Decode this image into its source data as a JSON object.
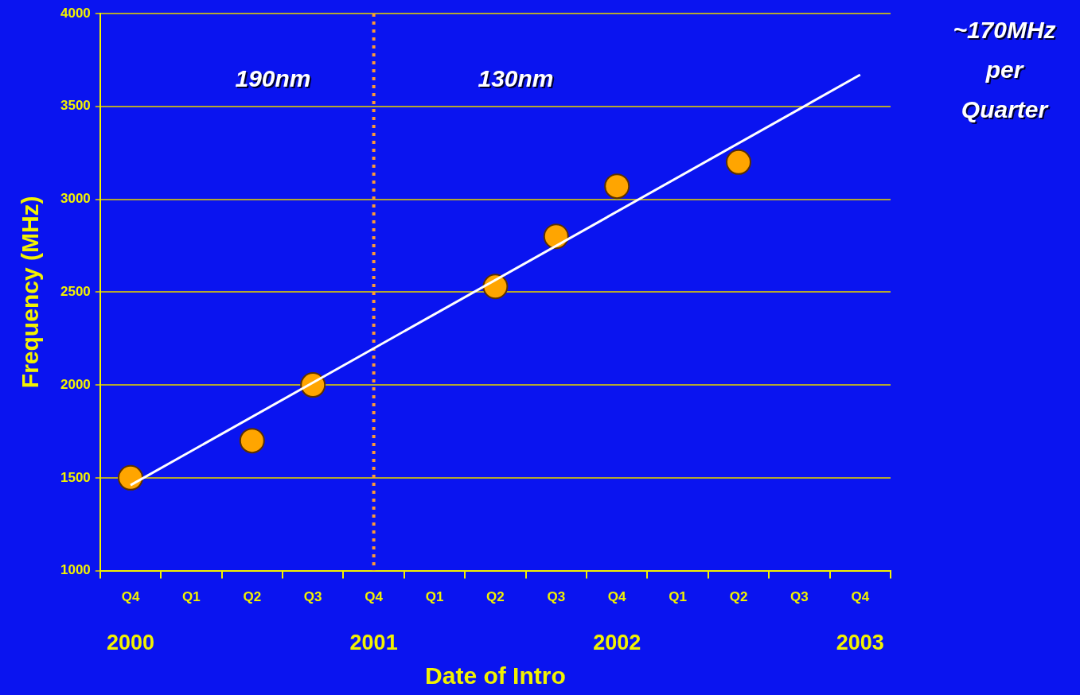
{
  "chart_data": {
    "type": "scatter",
    "xlabel": "Date of Intro",
    "ylabel": "Frequency (MHz)",
    "categories": [
      "Q4\n2000",
      "Q1",
      "Q2",
      "Q3",
      "Q4\n2001",
      "Q1",
      "Q2",
      "Q3",
      "Q4\n2002",
      "Q1",
      "Q2",
      "Q3",
      "Q4\n2003"
    ],
    "series": [
      {
        "color": "#ffa500",
        "values": [
          1500,
          null,
          1700,
          2000,
          null,
          null,
          2530,
          2800,
          3070,
          null,
          3200,
          null,
          null
        ]
      },
      {
        "type": "line",
        "marker": "none",
        "color": "#ffffff",
        "values": [
          1460,
          null,
          null,
          null,
          null,
          null,
          null,
          null,
          null,
          null,
          null,
          null,
          3670
        ]
      }
    ],
    "ylim": [
      1000,
      4000
    ],
    "yticks": [
      1000,
      1500,
      2000,
      2500,
      3000,
      3500,
      4000
    ],
    "grid": "y",
    "legend": false,
    "marker": "circle",
    "line_style": "solid",
    "ref_lines": [
      {
        "axis": "x",
        "value": "Q4\n2001",
        "color": "#ff9933",
        "line_style": "dotted"
      }
    ],
    "annotations": [
      "190nm",
      "130nm",
      "~170MHz\nper\nQuarter"
    ]
  }
}
